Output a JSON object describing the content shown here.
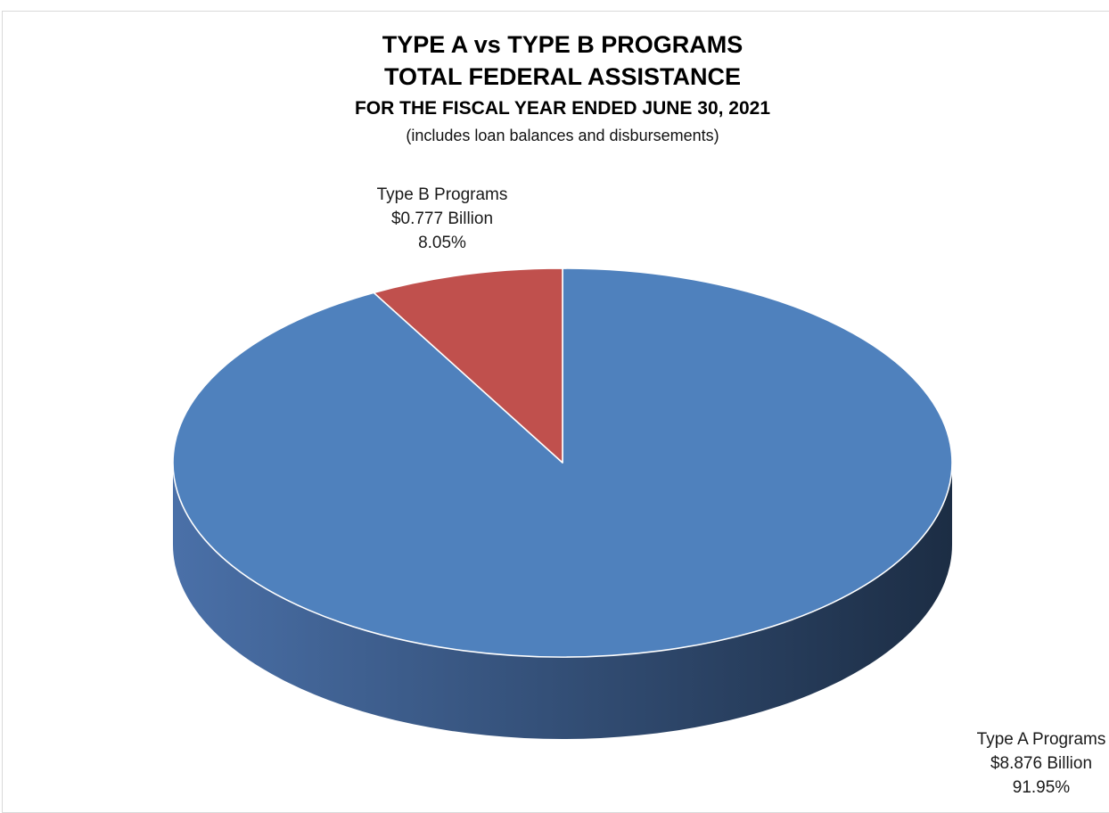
{
  "chart_data": {
    "type": "pie",
    "title": "TYPE A vs TYPE B PROGRAMS",
    "subtitle": "TOTAL FEDERAL ASSISTANCE",
    "subtitle2": "FOR THE FISCAL YEAR ENDED JUNE 30, 2021",
    "note": "(includes loan balances and disbursements)",
    "legend": "none",
    "slices": [
      {
        "name": "Type A Programs",
        "value_label": "$8.876 Billion",
        "percent_label": "91.95%",
        "value": 8.876,
        "percent": 91.95,
        "color": "#4f81bd",
        "side_color_light": "#4a70a8",
        "side_color_dark": "#1c2d44"
      },
      {
        "name": "Type B Programs",
        "value_label": "$0.777 Billion",
        "percent_label": "8.05%",
        "value": 0.777,
        "percent": 8.05,
        "color": "#c0504d"
      }
    ]
  }
}
